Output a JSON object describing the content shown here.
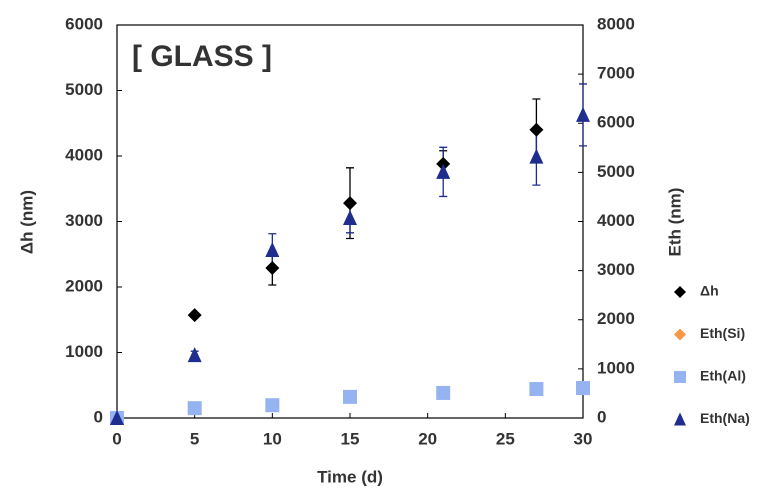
{
  "chart_data": {
    "type": "scatter",
    "annotation": "[ GLASS ]",
    "x_label": "Time  (d)",
    "y_label": "Δh  (nm)",
    "y2_label": "Eth (nm)",
    "xlim": [
      0,
      30
    ],
    "xticks": [
      0,
      5,
      10,
      15,
      20,
      25,
      30
    ],
    "ylim": [
      0,
      6000
    ],
    "yticks": [
      0,
      1000,
      2000,
      3000,
      4000,
      5000,
      6000
    ],
    "y2lim": [
      0,
      8000
    ],
    "y2ticks": [
      0,
      1000,
      2000,
      3000,
      4000,
      5000,
      6000,
      7000,
      8000
    ],
    "grid": false,
    "legend": "right",
    "series": [
      {
        "name": "Δh",
        "color": "#000000",
        "marker": "diamond",
        "x": [
          0,
          5,
          10,
          15,
          21,
          27
        ],
        "values": [
          0,
          1570,
          2290,
          3280,
          3880,
          4400
        ],
        "errors": [
          null,
          null,
          260,
          540,
          200,
          470
        ]
      },
      {
        "name": "Eth(Si)",
        "color": "#f79646",
        "marker": "diamond",
        "axis": "y2",
        "x": [],
        "values": [],
        "errors": []
      },
      {
        "name": "Eth(Al)",
        "color": "#95b3f0",
        "marker": "square",
        "axis": "y2",
        "x": [
          0,
          5,
          10,
          15,
          21,
          27,
          30
        ],
        "values": [
          0,
          200,
          260,
          430,
          510,
          590,
          610
        ],
        "errors": [
          null,
          null,
          null,
          null,
          null,
          null,
          null
        ]
      },
      {
        "name": "Eth(Na)",
        "color": "#1f2d8f",
        "marker": "triangle",
        "axis": "y2",
        "x": [
          0,
          5,
          10,
          15,
          21,
          27,
          30
        ],
        "values": [
          0,
          1280,
          3420,
          4070,
          5010,
          5320,
          6170
        ],
        "errors": [
          null,
          80,
          330,
          300,
          500,
          580,
          630
        ]
      }
    ]
  }
}
